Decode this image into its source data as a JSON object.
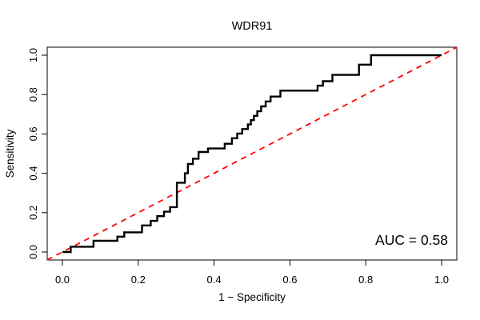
{
  "title": "WDR91",
  "axes": {
    "x_label": "1 − Specificity",
    "y_label": "Sensitivity"
  },
  "annotation": {
    "auc_label": "AUC = 0.58"
  },
  "colors": {
    "roc_curve": "#000000",
    "chance_line": "#ff0000",
    "box": "#000000",
    "text": "#000000",
    "background": "#ffffff"
  },
  "chart_data": {
    "type": "line",
    "title": "WDR91",
    "xlabel": "1 − Specificity",
    "ylabel": "Sensitivity",
    "xlim": [
      0.0,
      1.0
    ],
    "ylim": [
      0.0,
      1.0
    ],
    "x_ticks": [
      {
        "value": 0.0,
        "label": "0.0"
      },
      {
        "value": 0.2,
        "label": "0.2"
      },
      {
        "value": 0.4,
        "label": "0.4"
      },
      {
        "value": 0.6,
        "label": "0.6"
      },
      {
        "value": 0.8,
        "label": "0.8"
      },
      {
        "value": 1.0,
        "label": "1.0"
      }
    ],
    "y_ticks": [
      {
        "value": 0.0,
        "label": "0.0"
      },
      {
        "value": 0.2,
        "label": "0.2"
      },
      {
        "value": 0.4,
        "label": "0.4"
      },
      {
        "value": 0.6,
        "label": "0.6"
      },
      {
        "value": 0.8,
        "label": "0.8"
      },
      {
        "value": 1.0,
        "label": "1.0"
      }
    ],
    "grid": false,
    "auc": 0.58,
    "series": [
      {
        "name": "ROC curve",
        "style": "step-solid",
        "color": "#000000",
        "points": [
          [
            0.0,
            0.0
          ],
          [
            0.022,
            0.0
          ],
          [
            0.022,
            0.027
          ],
          [
            0.082,
            0.027
          ],
          [
            0.082,
            0.057
          ],
          [
            0.145,
            0.057
          ],
          [
            0.145,
            0.078
          ],
          [
            0.163,
            0.078
          ],
          [
            0.163,
            0.1
          ],
          [
            0.21,
            0.1
          ],
          [
            0.21,
            0.135
          ],
          [
            0.233,
            0.135
          ],
          [
            0.233,
            0.158
          ],
          [
            0.25,
            0.158
          ],
          [
            0.25,
            0.182
          ],
          [
            0.268,
            0.182
          ],
          [
            0.268,
            0.205
          ],
          [
            0.284,
            0.205
          ],
          [
            0.284,
            0.228
          ],
          [
            0.302,
            0.228
          ],
          [
            0.302,
            0.352
          ],
          [
            0.323,
            0.352
          ],
          [
            0.323,
            0.4
          ],
          [
            0.331,
            0.4
          ],
          [
            0.331,
            0.447
          ],
          [
            0.344,
            0.447
          ],
          [
            0.344,
            0.474
          ],
          [
            0.359,
            0.474
          ],
          [
            0.359,
            0.508
          ],
          [
            0.384,
            0.508
          ],
          [
            0.384,
            0.526
          ],
          [
            0.428,
            0.526
          ],
          [
            0.428,
            0.55
          ],
          [
            0.447,
            0.55
          ],
          [
            0.447,
            0.578
          ],
          [
            0.461,
            0.578
          ],
          [
            0.461,
            0.602
          ],
          [
            0.474,
            0.602
          ],
          [
            0.474,
            0.625
          ],
          [
            0.489,
            0.625
          ],
          [
            0.489,
            0.648
          ],
          [
            0.497,
            0.648
          ],
          [
            0.497,
            0.67
          ],
          [
            0.505,
            0.67
          ],
          [
            0.505,
            0.692
          ],
          [
            0.514,
            0.692
          ],
          [
            0.514,
            0.715
          ],
          [
            0.524,
            0.715
          ],
          [
            0.524,
            0.74
          ],
          [
            0.536,
            0.74
          ],
          [
            0.536,
            0.765
          ],
          [
            0.549,
            0.765
          ],
          [
            0.549,
            0.79
          ],
          [
            0.575,
            0.79
          ],
          [
            0.575,
            0.82
          ],
          [
            0.673,
            0.82
          ],
          [
            0.673,
            0.845
          ],
          [
            0.687,
            0.845
          ],
          [
            0.687,
            0.868
          ],
          [
            0.712,
            0.868
          ],
          [
            0.712,
            0.9
          ],
          [
            0.782,
            0.9
          ],
          [
            0.782,
            0.952
          ],
          [
            0.814,
            0.952
          ],
          [
            0.814,
            1.0
          ],
          [
            1.0,
            1.0
          ]
        ]
      },
      {
        "name": "Chance diagonal",
        "style": "dashed",
        "color": "#ff0000",
        "points": [
          [
            -0.04,
            -0.04
          ],
          [
            1.04,
            1.04
          ]
        ]
      }
    ]
  }
}
